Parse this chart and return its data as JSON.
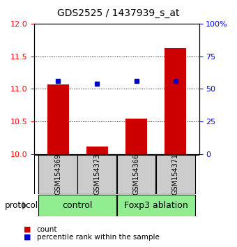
{
  "title": "GDS2525 / 1437939_s_at",
  "samples": [
    "GSM154369",
    "GSM154373",
    "GSM154366",
    "GSM154371"
  ],
  "bar_values": [
    11.07,
    10.12,
    10.55,
    11.62
  ],
  "percentile_values": [
    11.12,
    11.08,
    11.12,
    11.12
  ],
  "ylim_left": [
    10,
    12
  ],
  "ylim_right": [
    0,
    100
  ],
  "yticks_left": [
    10,
    10.5,
    11,
    11.5,
    12
  ],
  "yticks_right": [
    0,
    25,
    50,
    75,
    100
  ],
  "ytick_labels_right": [
    "0",
    "25",
    "50",
    "75",
    "100%"
  ],
  "bar_color": "#cc0000",
  "dot_color": "#0000cc",
  "bar_width": 0.55,
  "group_labels": [
    "control",
    "Foxp3 ablation"
  ],
  "group_color": "#90ee90",
  "group_label_prefix": "protocol",
  "legend_items": [
    {
      "label": "count",
      "color": "#cc0000"
    },
    {
      "label": "percentile rank within the sample",
      "color": "#0000cc"
    }
  ],
  "sample_box_color": "#cccccc",
  "title_fontsize": 10,
  "tick_fontsize": 8,
  "sample_fontsize": 7,
  "group_fontsize": 9,
  "legend_fontsize": 7.5
}
